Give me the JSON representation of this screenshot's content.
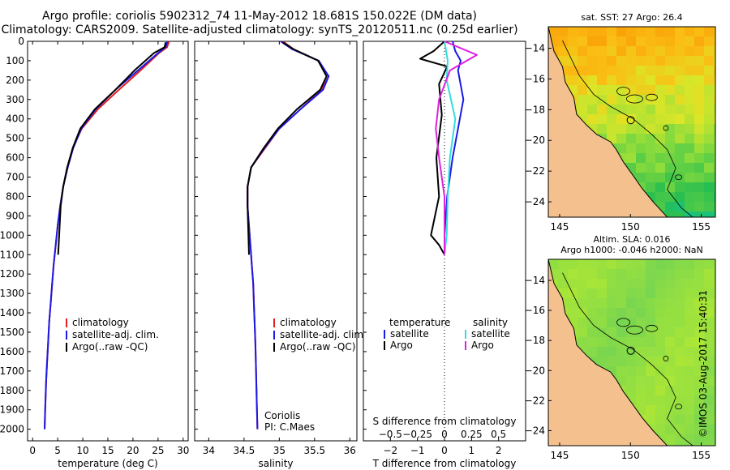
{
  "title": {
    "line1": "Argo profile: coriolis 5902312_74 11-May-2012 18.681S 150.022E (DM data)",
    "line2": "Climatology: CARS2009. Satellite-adjusted climatology: synTS_20120511.nc (0.25d earlier)"
  },
  "credit": "©IMOS 03-Aug-2017 15:40:31",
  "colors": {
    "climatology": "#e02020",
    "satellite": "#1a1ae6",
    "argo": "#000000",
    "sal_satellite": "#33dddd",
    "sal_argo": "#dd22dd"
  },
  "chart_data": [
    {
      "type": "line",
      "id": "temperature",
      "xlabel": "temperature (deg C)",
      "ylabel": "",
      "xlim": [
        -1,
        31
      ],
      "ylim": [
        0,
        2060
      ],
      "xticks": [
        0,
        5,
        10,
        15,
        20,
        25,
        30
      ],
      "yticks": [
        0,
        100,
        200,
        300,
        400,
        500,
        600,
        700,
        800,
        900,
        1000,
        1100,
        1200,
        1300,
        1400,
        1500,
        1600,
        1700,
        1800,
        1900,
        2000
      ],
      "legend": [
        "climatology",
        "satellite-adj. clim.",
        "Argo(..raw -QC)"
      ],
      "series": [
        {
          "name": "climatology",
          "color": "#e02020",
          "x": [
            27.2,
            26.8,
            25.2,
            21.5,
            17.2,
            13.0,
            9.8,
            8.0,
            6.9,
            6.1,
            5.5,
            5.0,
            4.6,
            4.2,
            3.9,
            3.6,
            3.3,
            3.1,
            2.9,
            2.7,
            2.5,
            2.4
          ],
          "y": [
            0,
            30,
            60,
            150,
            250,
            350,
            450,
            550,
            650,
            750,
            850,
            950,
            1050,
            1150,
            1250,
            1350,
            1450,
            1550,
            1650,
            1750,
            1900,
            2000
          ]
        },
        {
          "name": "satellite",
          "color": "#1a1ae6",
          "x": [
            26.9,
            26.5,
            25.0,
            21.0,
            16.5,
            12.6,
            9.7,
            8.1,
            7.0,
            6.1,
            5.5,
            5.0,
            4.6,
            4.2,
            3.9,
            3.6,
            3.3,
            3.1,
            2.9,
            2.7,
            2.5,
            2.4
          ],
          "y": [
            0,
            30,
            60,
            150,
            250,
            350,
            450,
            550,
            650,
            750,
            850,
            950,
            1050,
            1150,
            1250,
            1350,
            1450,
            1550,
            1650,
            1750,
            1900,
            2000
          ]
        },
        {
          "name": "Argo",
          "color": "#000000",
          "x": [
            26.5,
            26.3,
            24.2,
            20.3,
            16.5,
            12.4,
            9.5,
            8.0,
            6.9,
            6.1,
            5.6,
            5.1
          ],
          "y": [
            5,
            30,
            60,
            150,
            250,
            350,
            450,
            550,
            650,
            750,
            850,
            1100
          ]
        }
      ]
    },
    {
      "type": "line",
      "id": "salinity",
      "xlabel": "salinity",
      "xlim": [
        33.8,
        36.1
      ],
      "ylim": [
        0,
        2060
      ],
      "xticks": [
        34,
        34.5,
        35,
        35.5,
        36
      ],
      "xticklabels": [
        "34",
        "34.5",
        "35",
        "35.5",
        "36"
      ],
      "legend": [
        "climatology",
        "satellite-adj. clim.",
        "Argo(..raw -QC)"
      ],
      "annotation": [
        "Coriolis",
        "PI: C.Maes"
      ],
      "series": [
        {
          "name": "climatology",
          "color": "#e02020",
          "x": [
            35.05,
            35.2,
            35.55,
            35.7,
            35.6,
            35.3,
            35.0,
            34.8,
            34.6,
            34.55,
            34.55,
            34.57,
            34.59,
            34.61,
            34.63,
            34.64,
            34.65,
            34.66,
            34.67,
            34.68,
            34.69
          ],
          "y": [
            0,
            40,
            100,
            180,
            250,
            350,
            450,
            550,
            650,
            750,
            850,
            950,
            1050,
            1150,
            1250,
            1350,
            1450,
            1550,
            1700,
            1850,
            2000
          ]
        },
        {
          "name": "satellite",
          "color": "#1a1ae6",
          "x": [
            35.02,
            35.18,
            35.56,
            35.7,
            35.62,
            35.3,
            35.0,
            34.79,
            34.6,
            34.55,
            34.55,
            34.57,
            34.59,
            34.61,
            34.63,
            34.64,
            34.65,
            34.66,
            34.67,
            34.68,
            34.69
          ],
          "y": [
            0,
            40,
            100,
            180,
            250,
            350,
            450,
            550,
            650,
            750,
            850,
            950,
            1050,
            1150,
            1250,
            1350,
            1450,
            1550,
            1700,
            1850,
            2000
          ]
        },
        {
          "name": "Argo",
          "color": "#000000",
          "x": [
            35.05,
            35.2,
            35.55,
            35.67,
            35.58,
            35.25,
            34.98,
            34.78,
            34.6,
            34.55,
            34.55,
            34.57
          ],
          "y": [
            5,
            40,
            100,
            180,
            250,
            350,
            450,
            550,
            650,
            750,
            850,
            1100
          ]
        }
      ]
    },
    {
      "type": "line",
      "id": "difference",
      "xlabel": "T difference from climatology",
      "x2label": "S difference from climatology",
      "xlim": [
        -3,
        3
      ],
      "ylim": [
        0,
        2060
      ],
      "xticks": [
        -2,
        -1,
        0,
        1,
        2
      ],
      "x2ticks": [
        -0.5,
        -0.25,
        0,
        0.25,
        0.5
      ],
      "legend_titles": [
        "temperature",
        "salinity"
      ],
      "legend": [
        "satellite",
        "Argo",
        "satellite",
        "Argo"
      ],
      "series": [
        {
          "name": "T satellite",
          "color": "#1a1ae6",
          "x": [
            0.3,
            0.4,
            0.6,
            0.5,
            0.7,
            0.5,
            0.3,
            0.1,
            0.0,
            0.0
          ],
          "y": [
            0,
            50,
            100,
            150,
            300,
            450,
            600,
            800,
            1000,
            1100
          ]
        },
        {
          "name": "T Argo",
          "color": "#000000",
          "x": [
            0.0,
            -0.4,
            -0.9,
            0.1,
            -0.2,
            -0.1,
            -0.3,
            -0.2,
            -0.5,
            -0.2,
            0.0
          ],
          "y": [
            0,
            50,
            90,
            130,
            220,
            380,
            600,
            800,
            1000,
            1050,
            1100
          ]
        },
        {
          "name": "S satellite",
          "color": "#33dddd",
          "x": [
            0.0,
            0.03,
            0.02,
            0.1,
            0.05,
            0.03,
            0.02,
            0.0
          ],
          "y": [
            0,
            100,
            200,
            400,
            600,
            800,
            1000,
            1100
          ]
        },
        {
          "name": "S Argo",
          "color": "#dd22dd",
          "x": [
            0.0,
            0.3,
            0.05,
            -0.05,
            -0.08,
            -0.05,
            0.0,
            0.0
          ],
          "y": [
            0,
            70,
            150,
            300,
            450,
            600,
            800,
            1100
          ]
        }
      ]
    },
    {
      "type": "heatmap",
      "id": "sst-map",
      "title": "sat. SST: 27 Argo: 26.4",
      "xticks": [
        145,
        150,
        155
      ],
      "yticks": [
        -14,
        -16,
        -18,
        -20,
        -22,
        -24
      ],
      "xlim": [
        144.2,
        156
      ],
      "ylim": [
        -25,
        -12.6
      ]
    },
    {
      "type": "heatmap",
      "id": "sla-map",
      "title": [
        "Altim. SLA: 0.016",
        "Argo h1000: -0.046 h2000: NaN"
      ],
      "xticks": [
        145,
        150,
        155
      ],
      "yticks": [
        -14,
        -16,
        -18,
        -20,
        -22,
        -24
      ],
      "xlim": [
        144.2,
        156
      ],
      "ylim": [
        -25,
        -12.6
      ]
    }
  ]
}
